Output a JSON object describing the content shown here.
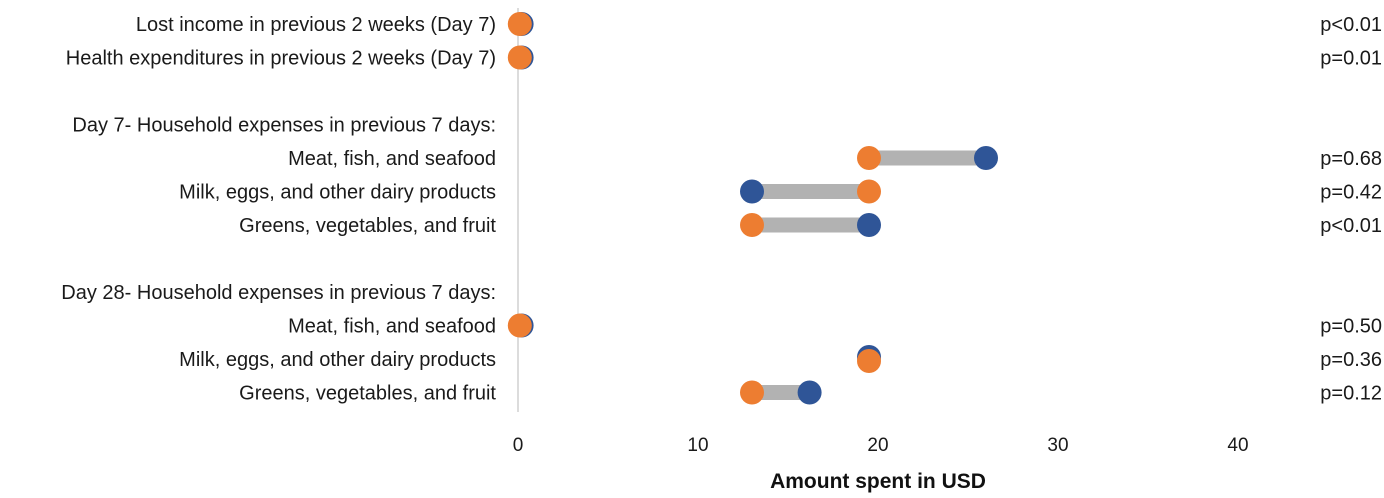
{
  "chart_data": {
    "type": "scatter",
    "subtype": "dumbbell",
    "title": "",
    "xlabel": "Amount spent in USD",
    "ylabel": "",
    "xlim": [
      0,
      40
    ],
    "xticks": [
      0,
      10,
      20,
      30,
      40
    ],
    "grid": false,
    "legend": "none",
    "colors": {
      "blue": "#2f5597",
      "orange": "#ed7d31",
      "connector": "#b2b2b2",
      "axis": "#d0d0d0"
    },
    "series": [
      {
        "color": "#2f5597"
      },
      {
        "color": "#ed7d31"
      }
    ],
    "rows": [
      {
        "label": "Lost income in previous 2 weeks (Day 7)",
        "blue": 0.2,
        "orange": 0.1,
        "p": "p<0.01"
      },
      {
        "label": "Health expenditures in previous 2 weeks (Day 7)",
        "blue": 0.2,
        "orange": 0.1,
        "p": "p=0.01"
      },
      {
        "label": "",
        "header": true
      },
      {
        "label": "Day 7- Household expenses in previous 7 days:",
        "header": true
      },
      {
        "label": "Meat, fish, and seafood",
        "blue": 26.0,
        "orange": 19.5,
        "p": "p=0.68"
      },
      {
        "label": "Milk, eggs, and other dairy products",
        "blue": 13.0,
        "orange": 19.5,
        "p": "p=0.42"
      },
      {
        "label": "Greens, vegetables, and fruit",
        "blue": 19.5,
        "orange": 13.0,
        "p": "p<0.01"
      },
      {
        "label": "",
        "header": true
      },
      {
        "label": "Day 28- Household expenses in previous 7 days:",
        "header": true
      },
      {
        "label": "Meat, fish, and seafood",
        "blue": 0.2,
        "orange": 0.1,
        "p": "p=0.50"
      },
      {
        "label": "Milk, eggs, and other dairy products",
        "blue": 19.5,
        "orange": 19.5,
        "p": "p=0.36"
      },
      {
        "label": "Greens, vegetables, and fruit",
        "blue": 16.2,
        "orange": 13.0,
        "p": "p=0.12"
      }
    ]
  }
}
